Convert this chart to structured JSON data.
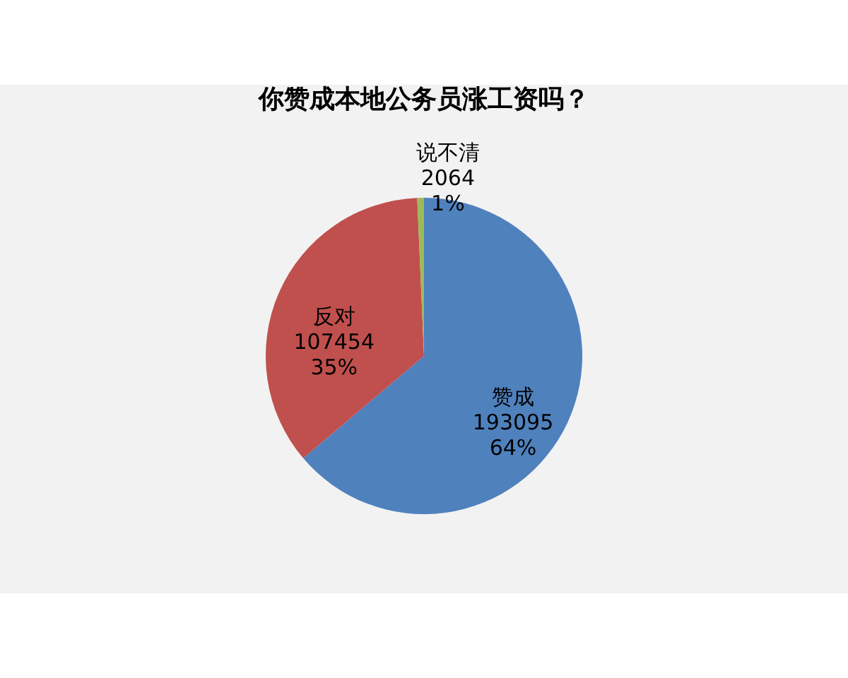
{
  "chart_data": {
    "type": "pie",
    "title": "你赞成本地公务员涨工资吗？",
    "categories": [
      "赞成",
      "反对",
      "说不清"
    ],
    "values": [
      193095,
      107454,
      2064
    ],
    "colors": [
      "#4f81bd",
      "#c0504d",
      "#9bbb59"
    ],
    "value_labels": [
      "193095\n64%",
      "107454\n35%",
      "2064\n1%"
    ]
  }
}
